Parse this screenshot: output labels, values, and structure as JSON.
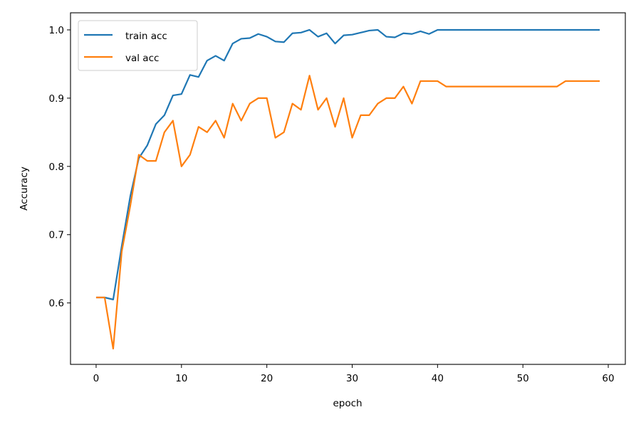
{
  "chart_data": {
    "type": "line",
    "title": "",
    "xlabel": "epoch",
    "ylabel": "Accuracy",
    "xlim": [
      -3,
      62
    ],
    "ylim": [
      0.51,
      1.025
    ],
    "x_ticks": [
      0,
      10,
      20,
      30,
      40,
      50,
      60
    ],
    "y_ticks": [
      0.6,
      0.7,
      0.8,
      0.9,
      1.0
    ],
    "x_tick_labels": [
      "0",
      "10",
      "20",
      "30",
      "40",
      "50",
      "60"
    ],
    "y_tick_labels": [
      "0.6",
      "0.7",
      "0.8",
      "0.9",
      "1.0"
    ],
    "grid": false,
    "legend_position": "top-left",
    "x": [
      0,
      1,
      2,
      3,
      4,
      5,
      6,
      7,
      8,
      9,
      10,
      11,
      12,
      13,
      14,
      15,
      16,
      17,
      18,
      19,
      20,
      21,
      22,
      23,
      24,
      25,
      26,
      27,
      28,
      29,
      30,
      31,
      32,
      33,
      34,
      35,
      36,
      37,
      38,
      39,
      40,
      41,
      42,
      43,
      44,
      45,
      46,
      47,
      48,
      49,
      50,
      51,
      52,
      53,
      54,
      55,
      56,
      57,
      58,
      59
    ],
    "series": [
      {
        "name": "train acc",
        "color": "#1f77b4",
        "values": [
          0.608,
          0.608,
          0.605,
          0.683,
          0.756,
          0.812,
          0.831,
          0.862,
          0.875,
          0.904,
          0.906,
          0.934,
          0.931,
          0.955,
          0.962,
          0.955,
          0.98,
          0.987,
          0.988,
          0.994,
          0.99,
          0.983,
          0.982,
          0.995,
          0.996,
          1.0,
          0.99,
          0.995,
          0.98,
          0.992,
          0.993,
          0.996,
          0.999,
          1.0,
          0.99,
          0.989,
          0.995,
          0.994,
          0.998,
          0.994,
          1.0,
          1.0,
          1.0,
          1.0,
          1.0,
          1.0,
          1.0,
          1.0,
          1.0,
          1.0,
          1.0,
          1.0,
          1.0,
          1.0,
          1.0,
          1.0,
          1.0,
          1.0,
          1.0,
          1.0
        ]
      },
      {
        "name": "val acc",
        "color": "#ff7f0e",
        "values": [
          0.608,
          0.608,
          0.533,
          0.675,
          0.742,
          0.817,
          0.808,
          0.808,
          0.85,
          0.867,
          0.8,
          0.817,
          0.858,
          0.85,
          0.867,
          0.842,
          0.892,
          0.867,
          0.892,
          0.9,
          0.9,
          0.842,
          0.85,
          0.892,
          0.883,
          0.933,
          0.883,
          0.9,
          0.858,
          0.9,
          0.842,
          0.875,
          0.875,
          0.892,
          0.9,
          0.9,
          0.917,
          0.892,
          0.925,
          0.925,
          0.925,
          0.917,
          0.917,
          0.917,
          0.917,
          0.917,
          0.917,
          0.917,
          0.917,
          0.917,
          0.917,
          0.917,
          0.917,
          0.917,
          0.917,
          0.925,
          0.925,
          0.925,
          0.925,
          0.925
        ]
      }
    ]
  }
}
